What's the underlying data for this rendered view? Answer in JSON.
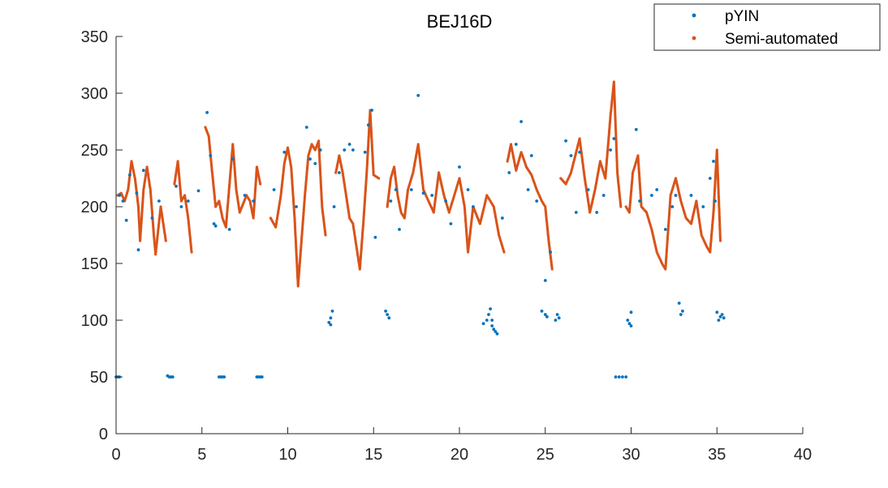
{
  "chart_data": {
    "type": "scatter",
    "title": "BEJ16D",
    "xlabel": "",
    "ylabel": "",
    "xlim": [
      0,
      40
    ],
    "ylim": [
      0,
      350
    ],
    "xticks": [
      0,
      5,
      10,
      15,
      20,
      25,
      30,
      35,
      40
    ],
    "yticks": [
      0,
      50,
      100,
      150,
      200,
      250,
      300,
      350
    ],
    "grid": false,
    "legend_position": "top-right",
    "series": [
      {
        "name": "pYIN",
        "color": "#0072BD",
        "points": [
          [
            0.0,
            50
          ],
          [
            0.1,
            50
          ],
          [
            0.2,
            50
          ],
          [
            0.2,
            210
          ],
          [
            0.4,
            205
          ],
          [
            0.6,
            188
          ],
          [
            0.8,
            228
          ],
          [
            1.2,
            212
          ],
          [
            1.3,
            162
          ],
          [
            1.6,
            232
          ],
          [
            2.1,
            190
          ],
          [
            2.5,
            205
          ],
          [
            3.0,
            51
          ],
          [
            3.1,
            50
          ],
          [
            3.2,
            50
          ],
          [
            3.3,
            50
          ],
          [
            3.5,
            218
          ],
          [
            3.8,
            200
          ],
          [
            4.2,
            205
          ],
          [
            4.8,
            214
          ],
          [
            5.3,
            283
          ],
          [
            5.5,
            245
          ],
          [
            5.7,
            185
          ],
          [
            5.8,
            183
          ],
          [
            6.0,
            50
          ],
          [
            6.1,
            50
          ],
          [
            6.2,
            50
          ],
          [
            6.3,
            50
          ],
          [
            6.6,
            180
          ],
          [
            6.8,
            242
          ],
          [
            7.5,
            210
          ],
          [
            8.0,
            205
          ],
          [
            8.2,
            50
          ],
          [
            8.3,
            50
          ],
          [
            8.4,
            50
          ],
          [
            8.5,
            50
          ],
          [
            9.2,
            215
          ],
          [
            9.8,
            248
          ],
          [
            10.5,
            200
          ],
          [
            11.1,
            270
          ],
          [
            11.3,
            242
          ],
          [
            11.6,
            238
          ],
          [
            11.9,
            250
          ],
          [
            12.4,
            98
          ],
          [
            12.5,
            102
          ],
          [
            12.6,
            108
          ],
          [
            12.5,
            96
          ],
          [
            12.7,
            200
          ],
          [
            13.0,
            230
          ],
          [
            13.3,
            250
          ],
          [
            13.6,
            255
          ],
          [
            13.8,
            250
          ],
          [
            14.5,
            248
          ],
          [
            14.7,
            272
          ],
          [
            14.9,
            285
          ],
          [
            15.1,
            173
          ],
          [
            15.8,
            105
          ],
          [
            15.9,
            102
          ],
          [
            15.7,
            108
          ],
          [
            16.0,
            205
          ],
          [
            16.3,
            215
          ],
          [
            16.5,
            180
          ],
          [
            17.2,
            215
          ],
          [
            17.6,
            298
          ],
          [
            17.9,
            212
          ],
          [
            18.4,
            210
          ],
          [
            19.2,
            205
          ],
          [
            19.5,
            185
          ],
          [
            20.0,
            235
          ],
          [
            20.5,
            215
          ],
          [
            20.8,
            200
          ],
          [
            21.4,
            97
          ],
          [
            21.6,
            100
          ],
          [
            21.7,
            105
          ],
          [
            21.8,
            110
          ],
          [
            21.9,
            95
          ],
          [
            22.0,
            92
          ],
          [
            22.1,
            90
          ],
          [
            22.2,
            88
          ],
          [
            21.9,
            100
          ],
          [
            22.5,
            190
          ],
          [
            22.9,
            230
          ],
          [
            23.3,
            255
          ],
          [
            23.6,
            275
          ],
          [
            24.0,
            215
          ],
          [
            24.2,
            245
          ],
          [
            24.5,
            205
          ],
          [
            24.8,
            108
          ],
          [
            25.0,
            105
          ],
          [
            25.1,
            103
          ],
          [
            25.0,
            135
          ],
          [
            25.3,
            160
          ],
          [
            25.6,
            100
          ],
          [
            25.7,
            105
          ],
          [
            25.8,
            102
          ],
          [
            26.2,
            258
          ],
          [
            26.5,
            245
          ],
          [
            26.8,
            195
          ],
          [
            27.0,
            248
          ],
          [
            27.5,
            215
          ],
          [
            28.0,
            195
          ],
          [
            28.4,
            210
          ],
          [
            28.8,
            250
          ],
          [
            29.0,
            260
          ],
          [
            29.1,
            50
          ],
          [
            29.3,
            50
          ],
          [
            29.5,
            50
          ],
          [
            29.7,
            50
          ],
          [
            29.8,
            100
          ],
          [
            29.9,
            97
          ],
          [
            30.0,
            95
          ],
          [
            30.0,
            107
          ],
          [
            30.3,
            268
          ],
          [
            30.5,
            205
          ],
          [
            31.2,
            210
          ],
          [
            31.5,
            215
          ],
          [
            32.0,
            180
          ],
          [
            32.4,
            200
          ],
          [
            32.6,
            210
          ],
          [
            32.8,
            115
          ],
          [
            32.9,
            105
          ],
          [
            33.0,
            108
          ],
          [
            33.5,
            210
          ],
          [
            34.2,
            200
          ],
          [
            34.6,
            225
          ],
          [
            34.8,
            240
          ],
          [
            34.9,
            205
          ],
          [
            35.0,
            107
          ],
          [
            35.1,
            100
          ],
          [
            35.2,
            103
          ],
          [
            35.3,
            105
          ],
          [
            35.4,
            102
          ]
        ]
      },
      {
        "name": "Semi-automated",
        "color": "#D95319",
        "segments": [
          [
            [
              0.1,
              210
            ],
            [
              0.3,
              212
            ],
            [
              0.5,
              205
            ],
            [
              0.7,
              215
            ],
            [
              0.9,
              240
            ],
            [
              1.1,
              225
            ],
            [
              1.3,
              200
            ],
            [
              1.4,
              170
            ],
            [
              1.6,
              215
            ],
            [
              1.8,
              235
            ],
            [
              2.0,
              215
            ],
            [
              2.2,
              175
            ],
            [
              2.3,
              158
            ],
            [
              2.6,
              200
            ],
            [
              2.9,
              170
            ]
          ],
          [
            [
              3.4,
              220
            ],
            [
              3.6,
              240
            ],
            [
              3.8,
              205
            ],
            [
              4.0,
              210
            ],
            [
              4.2,
              190
            ],
            [
              4.4,
              160
            ]
          ],
          [
            [
              5.2,
              270
            ],
            [
              5.4,
              262
            ],
            [
              5.6,
              230
            ],
            [
              5.8,
              200
            ],
            [
              6.0,
              205
            ],
            [
              6.2,
              190
            ],
            [
              6.4,
              182
            ],
            [
              6.8,
              255
            ],
            [
              7.0,
              215
            ],
            [
              7.2,
              195
            ],
            [
              7.6,
              210
            ],
            [
              7.8,
              205
            ],
            [
              8.0,
              190
            ],
            [
              8.2,
              235
            ],
            [
              8.4,
              220
            ]
          ],
          [
            [
              9.0,
              190
            ],
            [
              9.3,
              182
            ],
            [
              9.6,
              210
            ],
            [
              9.8,
              238
            ],
            [
              10.0,
              252
            ],
            [
              10.2,
              235
            ],
            [
              10.4,
              190
            ],
            [
              10.6,
              130
            ],
            [
              10.8,
              170
            ],
            [
              11.0,
              210
            ],
            [
              11.2,
              245
            ],
            [
              11.4,
              255
            ],
            [
              11.6,
              250
            ],
            [
              11.8,
              258
            ],
            [
              12.0,
              200
            ],
            [
              12.2,
              175
            ]
          ],
          [
            [
              12.8,
              230
            ],
            [
              13.0,
              245
            ],
            [
              13.2,
              230
            ],
            [
              13.4,
              210
            ],
            [
              13.6,
              190
            ],
            [
              13.8,
              185
            ],
            [
              14.0,
              165
            ],
            [
              14.2,
              145
            ],
            [
              14.4,
              185
            ],
            [
              14.6,
              230
            ],
            [
              14.8,
              285
            ],
            [
              15.0,
              228
            ],
            [
              15.3,
              225
            ]
          ],
          [
            [
              15.8,
              200
            ],
            [
              16.0,
              225
            ],
            [
              16.2,
              235
            ],
            [
              16.4,
              210
            ],
            [
              16.6,
              195
            ],
            [
              16.8,
              190
            ],
            [
              17.0,
              215
            ],
            [
              17.3,
              230
            ],
            [
              17.6,
              255
            ],
            [
              17.9,
              215
            ],
            [
              18.2,
              205
            ],
            [
              18.5,
              195
            ],
            [
              18.8,
              230
            ],
            [
              19.1,
              210
            ],
            [
              19.4,
              195
            ],
            [
              19.7,
              210
            ],
            [
              20.0,
              225
            ],
            [
              20.3,
              200
            ],
            [
              20.5,
              160
            ],
            [
              20.8,
              200
            ],
            [
              21.2,
              185
            ],
            [
              21.6,
              210
            ],
            [
              22.0,
              200
            ],
            [
              22.3,
              175
            ],
            [
              22.6,
              160
            ]
          ],
          [
            [
              22.8,
              240
            ],
            [
              23.0,
              255
            ],
            [
              23.3,
              232
            ],
            [
              23.6,
              248
            ],
            [
              23.9,
              235
            ],
            [
              24.2,
              228
            ],
            [
              24.5,
              215
            ],
            [
              24.8,
              205
            ],
            [
              25.0,
              200
            ],
            [
              25.2,
              170
            ],
            [
              25.4,
              145
            ]
          ],
          [
            [
              25.9,
              225
            ],
            [
              26.2,
              220
            ],
            [
              26.5,
              230
            ],
            [
              26.8,
              248
            ],
            [
              27.0,
              260
            ],
            [
              27.3,
              225
            ],
            [
              27.6,
              195
            ],
            [
              27.9,
              215
            ],
            [
              28.2,
              240
            ],
            [
              28.5,
              225
            ],
            [
              28.8,
              280
            ],
            [
              29.0,
              310
            ],
            [
              29.2,
              230
            ],
            [
              29.4,
              200
            ]
          ],
          [
            [
              29.7,
              200
            ],
            [
              29.9,
              195
            ],
            [
              30.1,
              230
            ],
            [
              30.4,
              245
            ],
            [
              30.6,
              200
            ],
            [
              30.9,
              195
            ],
            [
              31.2,
              180
            ],
            [
              31.5,
              160
            ],
            [
              31.8,
              150
            ],
            [
              32.0,
              145
            ],
            [
              32.3,
              210
            ],
            [
              32.6,
              225
            ],
            [
              32.9,
              205
            ],
            [
              33.2,
              190
            ],
            [
              33.5,
              185
            ],
            [
              33.8,
              205
            ],
            [
              34.1,
              175
            ],
            [
              34.4,
              165
            ],
            [
              34.6,
              160
            ],
            [
              34.8,
              195
            ],
            [
              35.0,
              250
            ],
            [
              35.2,
              170
            ]
          ]
        ]
      }
    ]
  }
}
